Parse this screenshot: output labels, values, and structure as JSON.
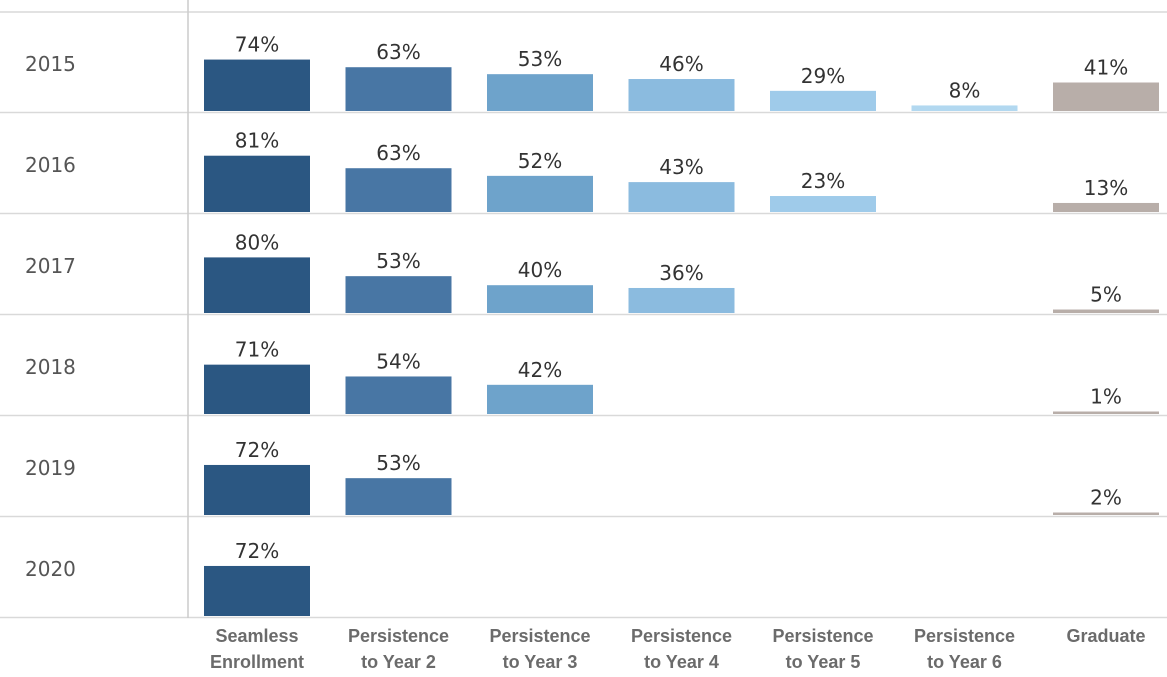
{
  "chart_data": {
    "type": "bar",
    "layout": "small-multiples",
    "rows": [
      "2015",
      "2016",
      "2017",
      "2018",
      "2019",
      "2020"
    ],
    "categories": [
      [
        "Seamless",
        "Enrollment"
      ],
      [
        "Persistence",
        "to Year 2"
      ],
      [
        "Persistence",
        "to Year 3"
      ],
      [
        "Persistence",
        "to Year 4"
      ],
      [
        "Persistence",
        "to Year 5"
      ],
      [
        "Persistence",
        "to Year 6"
      ],
      [
        "Graduate"
      ]
    ],
    "values": [
      [
        74,
        63,
        53,
        46,
        29,
        8,
        41
      ],
      [
        81,
        63,
        52,
        43,
        23,
        null,
        13
      ],
      [
        80,
        53,
        40,
        36,
        null,
        null,
        5
      ],
      [
        71,
        54,
        42,
        null,
        null,
        null,
        1
      ],
      [
        72,
        53,
        null,
        null,
        null,
        null,
        2
      ],
      [
        72,
        null,
        null,
        null,
        null,
        null,
        null
      ]
    ],
    "value_suffix": "%",
    "ylim": [
      0,
      100
    ],
    "colors": [
      "#2b5782",
      "#4876a4",
      "#6ea3cb",
      "#8bbbdf",
      "#9fcbea",
      "#b2d8f0",
      "#b8aea9"
    ],
    "grid": true,
    "legend": "none"
  }
}
